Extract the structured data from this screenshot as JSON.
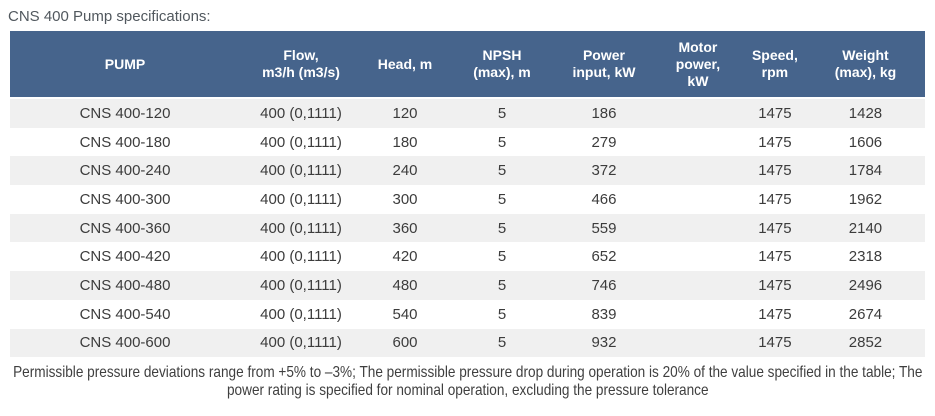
{
  "page": {
    "title": "CNS 400 Pump specifications:",
    "footnote": "Permissible pressure deviations range from +5% to –3%; The permissible pressure drop during operation is 20% of the value specified in the table; The power rating is specified for nominal operation, excluding the pressure tolerance"
  },
  "colors": {
    "header_bg": "#46648C",
    "header_text": "#FFFFFF",
    "row_stripe": "#F0F0F0",
    "body_text": "#3C3C3C",
    "title_text": "#51585E"
  },
  "table": {
    "columns": [
      {
        "label": "PUMP",
        "width": "25.14%"
      },
      {
        "label": "Flow,\nm3/h (m3/s)",
        "width": "13.33%"
      },
      {
        "label": "Head, m",
        "width": "9.40%"
      },
      {
        "label": "NPSH\n(max), m",
        "width": "11.80%"
      },
      {
        "label": "Power\ninput, kW",
        "width": "10.49%"
      },
      {
        "label": "Motor\npower,\nkW",
        "width": "10.05%"
      },
      {
        "label": "Speed,\nrpm",
        "width": "6.78%"
      },
      {
        "label": "Weight\n(max), kg",
        "width": "13.01%"
      }
    ],
    "rows": [
      [
        "CNS 400-120",
        "400 (0,1111)",
        "120",
        "5",
        "186",
        "",
        "1475",
        "1428"
      ],
      [
        "CNS 400-180",
        "400 (0,1111)",
        "180",
        "5",
        "279",
        "",
        "1475",
        "1606"
      ],
      [
        "CNS 400-240",
        "400 (0,1111)",
        "240",
        "5",
        "372",
        "",
        "1475",
        "1784"
      ],
      [
        "CNS 400-300",
        "400 (0,1111)",
        "300",
        "5",
        "466",
        "",
        "1475",
        "1962"
      ],
      [
        "CNS 400-360",
        "400 (0,1111)",
        "360",
        "5",
        "559",
        "",
        "1475",
        "2140"
      ],
      [
        "CNS 400-420",
        "400 (0,1111)",
        "420",
        "5",
        "652",
        "",
        "1475",
        "2318"
      ],
      [
        "CNS 400-480",
        "400 (0,1111)",
        "480",
        "5",
        "746",
        "",
        "1475",
        "2496"
      ],
      [
        "CNS 400-540",
        "400 (0,1111)",
        "540",
        "5",
        "839",
        "",
        "1475",
        "2674"
      ],
      [
        "CNS 400-600",
        "400 (0,1111)",
        "600",
        "5",
        "932",
        "",
        "1475",
        "2852"
      ]
    ]
  },
  "chart_data": {
    "type": "table",
    "title": "CNS 400 Pump specifications:",
    "columns": [
      "PUMP",
      "Flow, m3/h (m3/s)",
      "Head, m",
      "NPSH (max), m",
      "Power input, kW",
      "Motor power, kW",
      "Speed, rpm",
      "Weight (max), kg"
    ],
    "rows": [
      [
        "CNS 400-120",
        "400 (0,1111)",
        120,
        5,
        186,
        null,
        1475,
        1428
      ],
      [
        "CNS 400-180",
        "400 (0,1111)",
        180,
        5,
        279,
        null,
        1475,
        1606
      ],
      [
        "CNS 400-240",
        "400 (0,1111)",
        240,
        5,
        372,
        null,
        1475,
        1784
      ],
      [
        "CNS 400-300",
        "400 (0,1111)",
        300,
        5,
        466,
        null,
        1475,
        1962
      ],
      [
        "CNS 400-360",
        "400 (0,1111)",
        360,
        5,
        559,
        null,
        1475,
        2140
      ],
      [
        "CNS 400-420",
        "400 (0,1111)",
        420,
        5,
        652,
        null,
        1475,
        2318
      ],
      [
        "CNS 400-480",
        "400 (0,1111)",
        480,
        5,
        746,
        null,
        1475,
        2496
      ],
      [
        "CNS 400-540",
        "400 (0,1111)",
        540,
        5,
        839,
        null,
        1475,
        2674
      ],
      [
        "CNS 400-600",
        "400 (0,1111)",
        600,
        5,
        932,
        null,
        1475,
        2852
      ]
    ],
    "footnote": "Permissible pressure deviations range from +5% to –3%; The permissible pressure drop during operation is 20% of the value specified in the table; The power rating is specified for nominal operation, excluding the pressure tolerance"
  }
}
